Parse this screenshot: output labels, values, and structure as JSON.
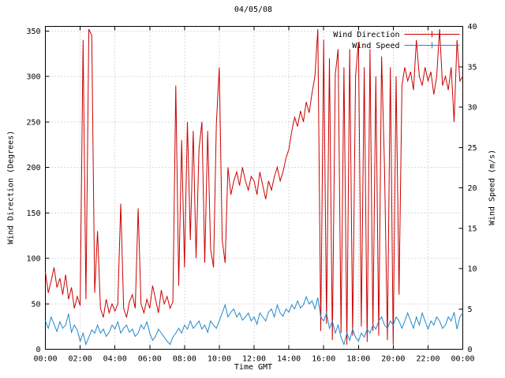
{
  "title": "04/05/08",
  "chart_data": {
    "type": "line",
    "title": "04/05/08",
    "xlabel": "Time GMT",
    "grid": true,
    "x_range_hours": [
      0,
      24
    ],
    "x_ticks_hours": [
      0,
      2,
      4,
      6,
      8,
      10,
      12,
      14,
      16,
      18,
      20,
      22,
      24
    ],
    "x_tick_labels": [
      "00:00",
      "02:00",
      "04:00",
      "06:00",
      "08:00",
      "10:00",
      "12:00",
      "14:00",
      "16:00",
      "18:00",
      "20:00",
      "22:00",
      "00:00"
    ],
    "x_sample_step_minutes": 10,
    "left_axis": {
      "label": "Wind Direction (Degrees)",
      "range": [
        0,
        355
      ],
      "ticks": [
        0,
        50,
        100,
        150,
        200,
        250,
        300,
        350
      ]
    },
    "right_axis": {
      "label": "Wind Speed (m/s)",
      "range": [
        0,
        40
      ],
      "ticks": [
        0,
        5,
        10,
        15,
        20,
        25,
        30,
        35,
        40
      ]
    },
    "legend": {
      "position": "top-right-inside",
      "entries": [
        {
          "label": "Wind Direction",
          "color": "#cc0000",
          "axis": "left"
        },
        {
          "label": "Wind Speed",
          "color": "#2288cc",
          "axis": "right"
        }
      ]
    },
    "series": [
      {
        "name": "Wind Direction",
        "axis": "left",
        "color": "#cc0000",
        "units": "degrees",
        "values": [
          85,
          62,
          75,
          90,
          68,
          78,
          60,
          82,
          55,
          68,
          45,
          58,
          48,
          340,
          55,
          352,
          345,
          62,
          130,
          45,
          35,
          55,
          40,
          50,
          42,
          50,
          160,
          45,
          35,
          52,
          60,
          45,
          155,
          50,
          40,
          55,
          45,
          70,
          55,
          40,
          65,
          50,
          58,
          45,
          52,
          290,
          70,
          230,
          90,
          250,
          120,
          240,
          100,
          220,
          250,
          95,
          240,
          110,
          90,
          248,
          310,
          120,
          95,
          200,
          170,
          185,
          195,
          180,
          200,
          185,
          175,
          190,
          185,
          170,
          195,
          180,
          165,
          185,
          175,
          190,
          200,
          185,
          195,
          210,
          220,
          240,
          255,
          245,
          262,
          250,
          272,
          260,
          282,
          300,
          352,
          20,
          340,
          28,
          320,
          10,
          302,
          330,
          18,
          310,
          5,
          330,
          15,
          300,
          338,
          25,
          310,
          8,
          330,
          20,
          300,
          15,
          322,
          200,
          10,
          310,
          5,
          300,
          60,
          290,
          310,
          295,
          305,
          285,
          340,
          300,
          290,
          310,
          295,
          305,
          280,
          300,
          352,
          290,
          300,
          285,
          310,
          250,
          340,
          295,
          300
        ]
      },
      {
        "name": "Wind Speed",
        "axis": "right",
        "color": "#2288cc",
        "units": "m/s",
        "values": [
          3.5,
          2.6,
          4.0,
          3.1,
          2.2,
          3.4,
          2.6,
          3.0,
          4.4,
          2.1,
          3.0,
          2.4,
          1.0,
          2.0,
          0.6,
          1.5,
          2.4,
          2.0,
          3.0,
          2.0,
          2.5,
          1.6,
          2.1,
          3.0,
          2.5,
          3.4,
          2.0,
          2.6,
          3.0,
          2.1,
          2.5,
          1.6,
          2.0,
          3.0,
          2.5,
          3.4,
          2.0,
          1.1,
          1.6,
          2.5,
          2.0,
          1.5,
          1.0,
          0.6,
          1.5,
          2.0,
          2.6,
          2.0,
          3.0,
          2.5,
          3.5,
          2.6,
          3.0,
          3.5,
          2.5,
          3.0,
          2.1,
          3.5,
          3.0,
          2.6,
          3.5,
          4.5,
          5.5,
          4.0,
          4.6,
          5.0,
          4.0,
          4.5,
          3.6,
          4.0,
          4.5,
          3.5,
          4.0,
          3.1,
          4.5,
          4.0,
          3.5,
          4.6,
          5.0,
          4.0,
          5.5,
          4.5,
          4.1,
          5.0,
          4.6,
          5.5,
          5.0,
          6.0,
          5.1,
          5.5,
          6.5,
          5.6,
          6.0,
          5.0,
          6.4,
          4.0,
          3.5,
          4.5,
          2.6,
          3.5,
          2.0,
          3.0,
          1.5,
          0.6,
          2.0,
          1.1,
          2.5,
          1.5,
          1.0,
          2.0,
          1.5,
          2.5,
          2.0,
          3.0,
          2.5,
          3.5,
          4.0,
          3.0,
          2.6,
          3.5,
          3.0,
          4.0,
          3.5,
          2.6,
          3.5,
          4.5,
          3.5,
          2.6,
          4.0,
          3.0,
          4.5,
          3.5,
          2.5,
          3.5,
          3.0,
          4.0,
          3.5,
          2.6,
          3.0,
          4.0,
          3.5,
          4.6,
          2.5,
          4.0,
          4.5
        ]
      }
    ]
  }
}
